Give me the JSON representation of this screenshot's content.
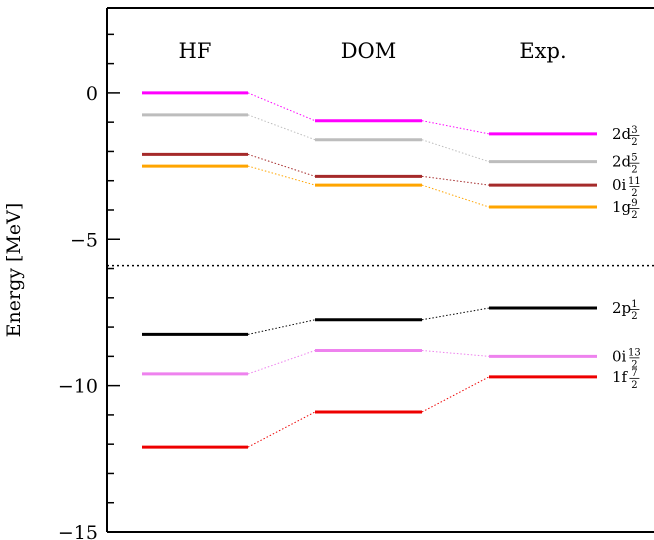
{
  "chart_data": {
    "type": "level-diagram",
    "title": "",
    "ylabel": "Energy [MeV]",
    "ylim": [
      -15,
      2.9
    ],
    "yticks": [
      {
        "value": 0,
        "label": "0"
      },
      {
        "value": -5,
        "label": "−5"
      },
      {
        "value": -10,
        "label": "−10"
      },
      {
        "value": -15,
        "label": "−15"
      }
    ],
    "columns": [
      "HF",
      "DOM",
      "Exp."
    ],
    "fermi_level": -5.9,
    "orbitals": [
      {
        "name": "2d3/2",
        "label": {
          "main": "2d",
          "num": "3",
          "den": "2"
        },
        "color": "#ff00ff",
        "values": [
          0.0,
          -0.95,
          -1.4
        ]
      },
      {
        "name": "2d5/2",
        "label": {
          "main": "2d",
          "num": "5",
          "den": "2"
        },
        "color": "#bdbdbd",
        "values": [
          -0.75,
          -1.6,
          -2.35
        ]
      },
      {
        "name": "0i11/2",
        "label": {
          "main": "0i",
          "num": "11",
          "den": "2"
        },
        "color": "#a52a2a",
        "values": [
          -2.1,
          -2.85,
          -3.15
        ]
      },
      {
        "name": "1g9/2",
        "label": {
          "main": "1g",
          "num": "9",
          "den": "2"
        },
        "color": "#ffa500",
        "values": [
          -2.5,
          -3.15,
          -3.9
        ]
      },
      {
        "name": "2p1/2",
        "label": {
          "main": "2p",
          "num": "1",
          "den": "2"
        },
        "color": "#000000",
        "values": [
          -8.25,
          -7.75,
          -7.35
        ]
      },
      {
        "name": "0i13/2",
        "label": {
          "main": "0i",
          "num": "13",
          "den": "2"
        },
        "color": "#ee82ee",
        "values": [
          -9.6,
          -8.8,
          -9.0
        ]
      },
      {
        "name": "1f7/2",
        "label": {
          "main": "1f",
          "num": "7",
          "den": "2"
        },
        "color": "#ee0000",
        "values": [
          -12.1,
          -10.9,
          -9.7
        ]
      }
    ]
  }
}
